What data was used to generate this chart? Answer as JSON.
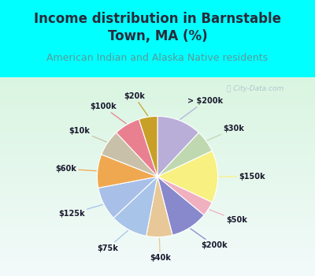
{
  "title": "Income distribution in Barnstable\nTown, MA (%)",
  "subtitle": "American Indian and Alaska Native residents",
  "watermark": "ⓘ City-Data.com",
  "background_top": "#00FFFF",
  "background_chart_top": "#d8f0e8",
  "background_chart_bottom": "#e8f8f0",
  "labels": [
    "> $200k",
    "$30k",
    "$150k",
    "$50k",
    "$200k",
    "$40k",
    "$75k",
    "$125k",
    "$60k",
    "$10k",
    "$100k",
    "$20k"
  ],
  "values": [
    12,
    6,
    14,
    4,
    10,
    7,
    10,
    9,
    9,
    7,
    7,
    5
  ],
  "colors": [
    "#b8aed8",
    "#c0d8b0",
    "#f8f080",
    "#f0b0c0",
    "#8888cc",
    "#e8c898",
    "#a8c4e8",
    "#a8c0e8",
    "#f0a850",
    "#c8c0a8",
    "#e88090",
    "#c8a028"
  ],
  "title_fontsize": 12,
  "subtitle_fontsize": 9,
  "title_color": "#2a2a3a",
  "subtitle_color": "#5a9a9a",
  "label_fontsize": 7,
  "label_color": "#1a1a2e"
}
